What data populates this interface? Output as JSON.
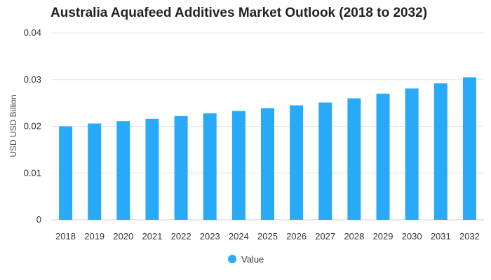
{
  "chart_data": {
    "type": "bar",
    "title": "Australia Aquafeed Additives Market Outlook (2018 to 2032)",
    "xlabel": "",
    "ylabel": "USD USD Billion",
    "ylim": [
      0,
      0.04
    ],
    "yticks": [
      "0",
      "0.01",
      "0.02",
      "0.03",
      "0.04"
    ],
    "categories": [
      "2018",
      "2019",
      "2020",
      "2021",
      "2022",
      "2023",
      "2024",
      "2025",
      "2026",
      "2027",
      "2028",
      "2029",
      "2030",
      "2031",
      "2032"
    ],
    "series": [
      {
        "name": "Value",
        "color": "#29aaf9",
        "values": [
          0.02,
          0.0206,
          0.0211,
          0.0216,
          0.0222,
          0.0228,
          0.0233,
          0.0239,
          0.0245,
          0.0251,
          0.026,
          0.027,
          0.0281,
          0.0292,
          0.0305
        ]
      }
    ],
    "grid": true,
    "legend_position": "bottom"
  }
}
